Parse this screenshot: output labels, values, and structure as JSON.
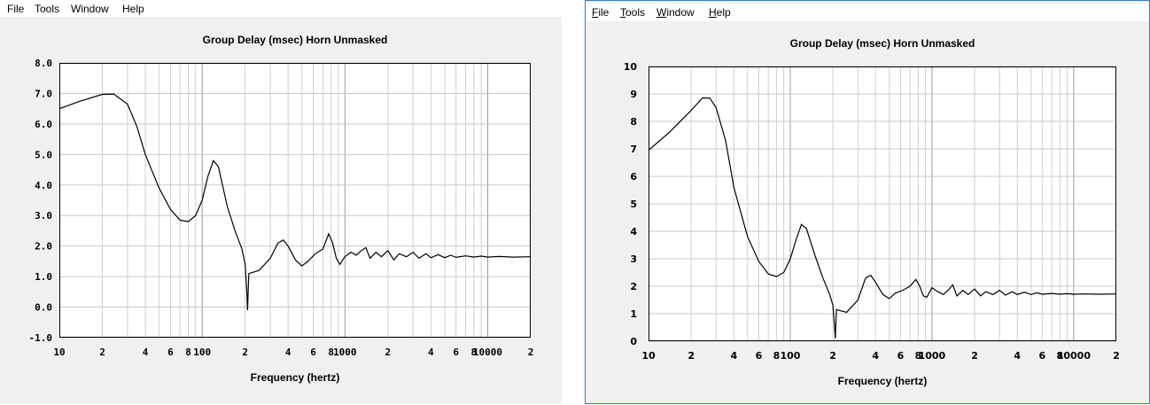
{
  "windows": [
    {
      "menu": [
        "File",
        "Tools",
        "Window",
        "Help"
      ],
      "underline_menu": false
    },
    {
      "menu": [
        "File",
        "Tools",
        "Window",
        "Help"
      ],
      "underline_menu": true
    }
  ],
  "chart_data": [
    {
      "type": "line",
      "title": "Group Delay (msec)    Horn    Unmasked",
      "xlabel": "Frequency (hertz)",
      "ylabel": "",
      "x_scale": "log",
      "xlim": [
        10,
        20000
      ],
      "ylim": [
        -1,
        8
      ],
      "y_ticks": [
        "-1.0",
        "0.0",
        "1.0",
        "2.0",
        "3.0",
        "4.0",
        "5.0",
        "6.0",
        "7.0",
        "8.0"
      ],
      "x_ticks": [
        {
          "f": 10,
          "label": "10"
        },
        {
          "f": 20,
          "label": "2"
        },
        {
          "f": 40,
          "label": "4"
        },
        {
          "f": 60,
          "label": "6"
        },
        {
          "f": 80,
          "label": "8"
        },
        {
          "f": 100,
          "label": "100"
        },
        {
          "f": 200,
          "label": "2"
        },
        {
          "f": 400,
          "label": "4"
        },
        {
          "f": 600,
          "label": "6"
        },
        {
          "f": 800,
          "label": "8"
        },
        {
          "f": 1000,
          "label": "1000"
        },
        {
          "f": 2000,
          "label": "2"
        },
        {
          "f": 4000,
          "label": "4"
        },
        {
          "f": 6000,
          "label": "6"
        },
        {
          "f": 8000,
          "label": "8"
        },
        {
          "f": 10000,
          "label": "10000"
        },
        {
          "f": 20000,
          "label": "2"
        }
      ],
      "series": [
        {
          "points": [
            [
              10,
              6.5
            ],
            [
              14,
              6.75
            ],
            [
              20,
              6.97
            ],
            [
              24,
              6.98
            ],
            [
              30,
              6.65
            ],
            [
              35,
              5.9
            ],
            [
              40,
              5.0
            ],
            [
              50,
              3.9
            ],
            [
              60,
              3.2
            ],
            [
              70,
              2.85
            ],
            [
              80,
              2.8
            ],
            [
              90,
              3.0
            ],
            [
              100,
              3.5
            ],
            [
              110,
              4.3
            ],
            [
              120,
              4.8
            ],
            [
              130,
              4.6
            ],
            [
              150,
              3.3
            ],
            [
              170,
              2.5
            ],
            [
              190,
              1.9
            ],
            [
              200,
              1.4
            ],
            [
              205,
              0.6
            ],
            [
              208,
              -0.1
            ],
            [
              212,
              1.1
            ],
            [
              250,
              1.2
            ],
            [
              300,
              1.6
            ],
            [
              340,
              2.1
            ],
            [
              370,
              2.2
            ],
            [
              400,
              2.0
            ],
            [
              450,
              1.55
            ],
            [
              500,
              1.35
            ],
            [
              550,
              1.5
            ],
            [
              620,
              1.75
            ],
            [
              700,
              1.9
            ],
            [
              770,
              2.4
            ],
            [
              820,
              2.1
            ],
            [
              870,
              1.6
            ],
            [
              920,
              1.4
            ],
            [
              1000,
              1.65
            ],
            [
              1100,
              1.8
            ],
            [
              1200,
              1.7
            ],
            [
              1300,
              1.85
            ],
            [
              1400,
              1.95
            ],
            [
              1500,
              1.6
            ],
            [
              1650,
              1.8
            ],
            [
              1800,
              1.65
            ],
            [
              2000,
              1.85
            ],
            [
              2200,
              1.55
            ],
            [
              2400,
              1.75
            ],
            [
              2700,
              1.65
            ],
            [
              3000,
              1.8
            ],
            [
              3300,
              1.6
            ],
            [
              3700,
              1.75
            ],
            [
              4000,
              1.62
            ],
            [
              4500,
              1.72
            ],
            [
              5000,
              1.62
            ],
            [
              5500,
              1.7
            ],
            [
              6000,
              1.63
            ],
            [
              7000,
              1.68
            ],
            [
              8000,
              1.64
            ],
            [
              9000,
              1.67
            ],
            [
              10000,
              1.64
            ],
            [
              12000,
              1.66
            ],
            [
              15000,
              1.64
            ],
            [
              20000,
              1.65
            ]
          ]
        }
      ]
    },
    {
      "type": "line",
      "title": "Group Delay (msec)    Horn    Unmasked",
      "xlabel": "Frequency (hertz)",
      "ylabel": "",
      "x_scale": "log",
      "xlim": [
        10,
        20000
      ],
      "ylim": [
        0,
        10
      ],
      "y_ticks": [
        "0",
        "1",
        "2",
        "3",
        "4",
        "5",
        "6",
        "7",
        "8",
        "9",
        "10"
      ],
      "x_ticks": [
        {
          "f": 10,
          "label": "10"
        },
        {
          "f": 20,
          "label": "2"
        },
        {
          "f": 40,
          "label": "4"
        },
        {
          "f": 60,
          "label": "6"
        },
        {
          "f": 80,
          "label": "8"
        },
        {
          "f": 100,
          "label": "100"
        },
        {
          "f": 200,
          "label": "2"
        },
        {
          "f": 400,
          "label": "4"
        },
        {
          "f": 600,
          "label": "6"
        },
        {
          "f": 800,
          "label": "8"
        },
        {
          "f": 1000,
          "label": "1000"
        },
        {
          "f": 2000,
          "label": "2"
        },
        {
          "f": 4000,
          "label": "4"
        },
        {
          "f": 6000,
          "label": "6"
        },
        {
          "f": 8000,
          "label": "8"
        },
        {
          "f": 10000,
          "label": "10000"
        },
        {
          "f": 20000,
          "label": "2"
        }
      ],
      "series": [
        {
          "points": [
            [
              10,
              6.95
            ],
            [
              14,
              7.6
            ],
            [
              20,
              8.4
            ],
            [
              24,
              8.85
            ],
            [
              27,
              8.85
            ],
            [
              30,
              8.5
            ],
            [
              35,
              7.3
            ],
            [
              40,
              5.6
            ],
            [
              50,
              3.8
            ],
            [
              60,
              2.9
            ],
            [
              70,
              2.45
            ],
            [
              80,
              2.35
            ],
            [
              90,
              2.5
            ],
            [
              100,
              3.0
            ],
            [
              110,
              3.7
            ],
            [
              120,
              4.25
            ],
            [
              130,
              4.1
            ],
            [
              150,
              3.1
            ],
            [
              170,
              2.3
            ],
            [
              190,
              1.7
            ],
            [
              200,
              1.3
            ],
            [
              205,
              0.6
            ],
            [
              208,
              0.1
            ],
            [
              212,
              1.15
            ],
            [
              250,
              1.05
            ],
            [
              300,
              1.5
            ],
            [
              340,
              2.3
            ],
            [
              370,
              2.4
            ],
            [
              400,
              2.15
            ],
            [
              450,
              1.7
            ],
            [
              500,
              1.55
            ],
            [
              550,
              1.75
            ],
            [
              620,
              1.85
            ],
            [
              700,
              2.0
            ],
            [
              770,
              2.25
            ],
            [
              820,
              2.0
            ],
            [
              870,
              1.65
            ],
            [
              920,
              1.6
            ],
            [
              1000,
              1.95
            ],
            [
              1100,
              1.8
            ],
            [
              1200,
              1.7
            ],
            [
              1300,
              1.85
            ],
            [
              1400,
              2.05
            ],
            [
              1500,
              1.65
            ],
            [
              1650,
              1.85
            ],
            [
              1800,
              1.7
            ],
            [
              2000,
              1.9
            ],
            [
              2200,
              1.65
            ],
            [
              2400,
              1.8
            ],
            [
              2700,
              1.7
            ],
            [
              3000,
              1.85
            ],
            [
              3300,
              1.68
            ],
            [
              3700,
              1.8
            ],
            [
              4000,
              1.7
            ],
            [
              4500,
              1.78
            ],
            [
              5000,
              1.7
            ],
            [
              5500,
              1.76
            ],
            [
              6000,
              1.71
            ],
            [
              7000,
              1.74
            ],
            [
              8000,
              1.71
            ],
            [
              9000,
              1.73
            ],
            [
              10000,
              1.71
            ],
            [
              12000,
              1.72
            ],
            [
              15000,
              1.71
            ],
            [
              20000,
              1.72
            ]
          ]
        }
      ]
    }
  ]
}
